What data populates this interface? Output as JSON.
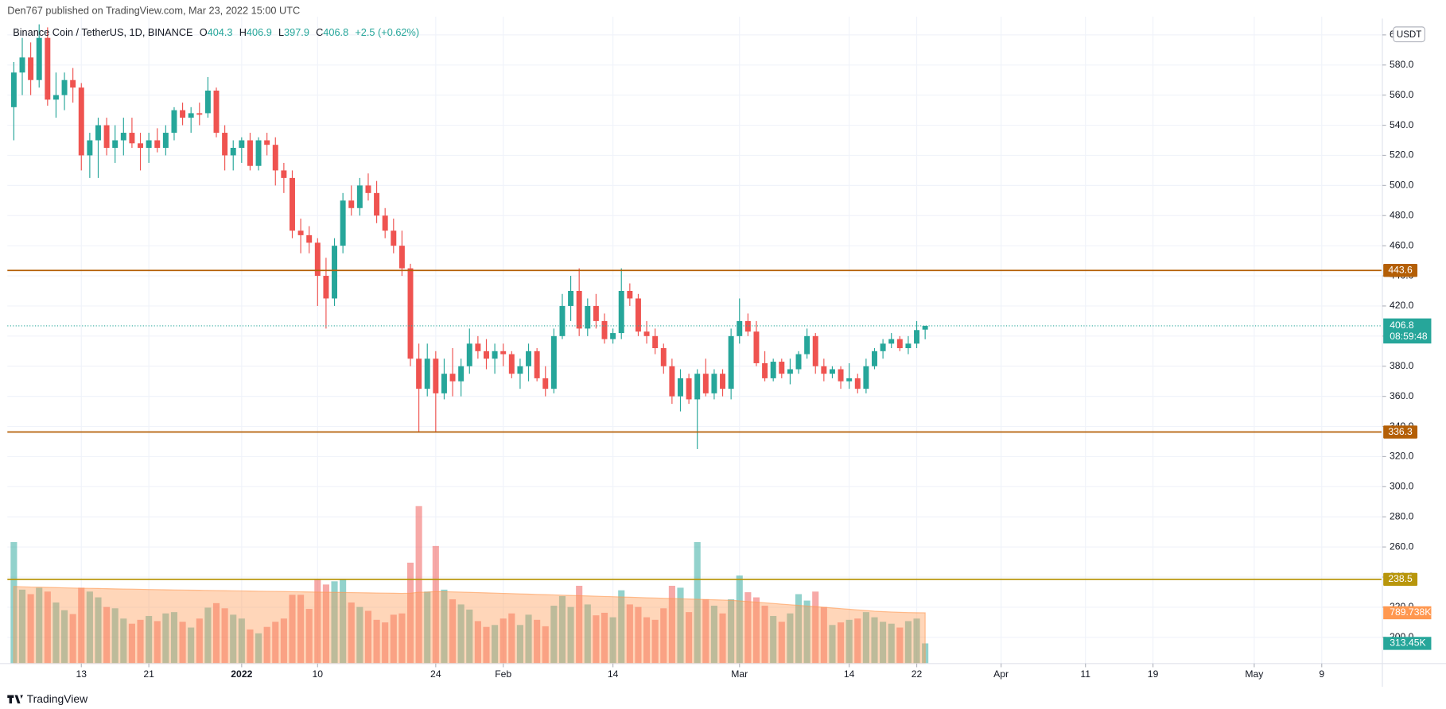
{
  "chart_data": {
    "type": "candlestick",
    "publisher": "Den767 published on TradingView.com, Mar 23, 2022 15:00 UTC",
    "title": "Binance Coin / TetherUS, 1D, BINANCE",
    "ohlc_labels": [
      "O",
      "H",
      "L",
      "C"
    ],
    "change": "+2.5 (+0.62%)",
    "currency": "USDT",
    "countdown": "08:59:48",
    "brand": "TradingView",
    "up_color": "#26a69a",
    "down_color": "#ef5350",
    "ma_color": "#ff9850",
    "x": [
      "2021-12-05",
      "2021-12-06",
      "2021-12-07",
      "2021-12-08",
      "2021-12-09",
      "2021-12-10",
      "2021-12-11",
      "2021-12-12",
      "2021-12-13",
      "2021-12-14",
      "2021-12-15",
      "2021-12-16",
      "2021-12-17",
      "2021-12-18",
      "2021-12-19",
      "2021-12-20",
      "2021-12-21",
      "2021-12-22",
      "2021-12-23",
      "2021-12-24",
      "2021-12-25",
      "2021-12-26",
      "2021-12-27",
      "2021-12-28",
      "2021-12-29",
      "2021-12-30",
      "2021-12-31",
      "2022-01-01",
      "2022-01-02",
      "2022-01-03",
      "2022-01-04",
      "2022-01-05",
      "2022-01-06",
      "2022-01-07",
      "2022-01-08",
      "2022-01-09",
      "2022-01-10",
      "2022-01-11",
      "2022-01-12",
      "2022-01-13",
      "2022-01-14",
      "2022-01-15",
      "2022-01-16",
      "2022-01-17",
      "2022-01-18",
      "2022-01-19",
      "2022-01-20",
      "2022-01-21",
      "2022-01-22",
      "2022-01-23",
      "2022-01-24",
      "2022-01-25",
      "2022-01-26",
      "2022-01-27",
      "2022-01-28",
      "2022-01-29",
      "2022-01-30",
      "2022-01-31",
      "2022-02-01",
      "2022-02-02",
      "2022-02-03",
      "2022-02-04",
      "2022-02-05",
      "2022-02-06",
      "2022-02-07",
      "2022-02-08",
      "2022-02-09",
      "2022-02-10",
      "2022-02-11",
      "2022-02-12",
      "2022-02-13",
      "2022-02-14",
      "2022-02-15",
      "2022-02-16",
      "2022-02-17",
      "2022-02-18",
      "2022-02-19",
      "2022-02-20",
      "2022-02-21",
      "2022-02-22",
      "2022-02-23",
      "2022-02-24",
      "2022-02-25",
      "2022-02-26",
      "2022-02-27",
      "2022-02-28",
      "2022-03-01",
      "2022-03-02",
      "2022-03-03",
      "2022-03-04",
      "2022-03-05",
      "2022-03-06",
      "2022-03-07",
      "2022-03-08",
      "2022-03-09",
      "2022-03-10",
      "2022-03-11",
      "2022-03-12",
      "2022-03-13",
      "2022-03-14",
      "2022-03-15",
      "2022-03-16",
      "2022-03-17",
      "2022-03-18",
      "2022-03-19",
      "2022-03-20",
      "2022-03-21",
      "2022-03-22",
      "2022-03-23"
    ],
    "open": [
      552,
      575,
      585,
      570,
      598,
      557,
      560,
      570,
      565,
      520,
      530,
      540,
      525,
      530,
      535,
      528,
      525,
      530,
      525,
      535,
      550,
      545,
      548,
      548,
      563,
      535,
      520,
      525,
      530,
      513,
      530,
      527,
      510,
      505,
      470,
      467,
      462,
      440,
      425,
      460,
      490,
      485,
      500,
      495,
      480,
      470,
      460,
      445,
      385,
      365,
      385,
      362,
      375,
      370,
      380,
      395,
      390,
      385,
      390,
      388,
      375,
      380,
      390,
      372,
      365,
      400,
      420,
      430,
      405,
      420,
      410,
      398,
      402,
      430,
      425,
      403,
      400,
      392,
      380,
      360,
      372,
      358,
      375,
      362,
      375,
      365,
      400,
      410,
      403,
      382,
      372,
      383,
      375,
      378,
      388,
      400,
      380,
      375,
      378,
      370,
      372,
      365,
      380,
      390,
      395,
      398,
      392,
      395,
      404.3
    ],
    "high": [
      582,
      598,
      595,
      607,
      605,
      575,
      575,
      578,
      568,
      535,
      545,
      545,
      540,
      545,
      545,
      535,
      535,
      538,
      540,
      552,
      555,
      552,
      555,
      572,
      565,
      540,
      530,
      532,
      535,
      532,
      535,
      532,
      515,
      510,
      478,
      473,
      465,
      452,
      465,
      495,
      500,
      505,
      508,
      503,
      485,
      478,
      470,
      448,
      395,
      395,
      390,
      385,
      392,
      385,
      405,
      400,
      398,
      395,
      395,
      390,
      385,
      395,
      392,
      380,
      405,
      428,
      440,
      445,
      425,
      428,
      415,
      405,
      445,
      435,
      428,
      410,
      405,
      395,
      385,
      378,
      375,
      378,
      385,
      378,
      378,
      405,
      425,
      415,
      410,
      390,
      385,
      385,
      385,
      390,
      405,
      402,
      385,
      380,
      380,
      382,
      375,
      385,
      392,
      398,
      402,
      400,
      400,
      410,
      406.9
    ],
    "low": [
      530,
      560,
      560,
      565,
      553,
      545,
      550,
      555,
      510,
      505,
      505,
      520,
      515,
      520,
      525,
      510,
      515,
      522,
      520,
      530,
      540,
      535,
      540,
      545,
      532,
      510,
      510,
      515,
      510,
      510,
      520,
      500,
      495,
      465,
      455,
      455,
      420,
      405,
      420,
      455,
      480,
      480,
      490,
      475,
      465,
      455,
      440,
      380,
      336,
      360,
      336,
      358,
      360,
      360,
      375,
      385,
      378,
      375,
      380,
      372,
      365,
      370,
      370,
      360,
      362,
      398,
      410,
      400,
      400,
      405,
      395,
      395,
      398,
      420,
      400,
      395,
      388,
      375,
      355,
      350,
      355,
      325,
      360,
      358,
      360,
      358,
      395,
      400,
      380,
      370,
      370,
      372,
      368,
      375,
      385,
      375,
      370,
      372,
      365,
      365,
      362,
      362,
      378,
      385,
      392,
      390,
      388,
      392,
      397.9
    ],
    "close": [
      575,
      585,
      570,
      598,
      557,
      560,
      570,
      565,
      520,
      530,
      540,
      525,
      530,
      535,
      528,
      525,
      530,
      525,
      535,
      550,
      545,
      548,
      547,
      563,
      535,
      520,
      525,
      530,
      513,
      530,
      527,
      510,
      505,
      470,
      467,
      462,
      440,
      425,
      460,
      490,
      485,
      500,
      495,
      480,
      470,
      460,
      445,
      385,
      365,
      385,
      362,
      375,
      370,
      380,
      395,
      390,
      385,
      390,
      388,
      375,
      380,
      390,
      372,
      365,
      400,
      420,
      430,
      405,
      420,
      410,
      398,
      402,
      430,
      425,
      403,
      400,
      392,
      380,
      360,
      372,
      358,
      375,
      362,
      375,
      365,
      400,
      410,
      403,
      382,
      372,
      383,
      375,
      378,
      388,
      400,
      380,
      375,
      378,
      370,
      372,
      365,
      380,
      390,
      395,
      398,
      392,
      395,
      404,
      406.8
    ],
    "volume": [
      1890,
      1150,
      1080,
      1180,
      1120,
      950,
      830,
      770,
      1180,
      1120,
      1030,
      880,
      860,
      700,
      620,
      680,
      740,
      660,
      780,
      800,
      650,
      560,
      700,
      870,
      940,
      860,
      760,
      700,
      530,
      470,
      570,
      650,
      700,
      1070,
      1070,
      850,
      1310,
      1230,
      1280,
      1310,
      950,
      880,
      820,
      680,
      640,
      760,
      780,
      1570,
      2450,
      1120,
      1830,
      1150,
      1000,
      920,
      840,
      660,
      570,
      600,
      700,
      780,
      600,
      760,
      680,
      580,
      900,
      1050,
      880,
      1210,
      920,
      750,
      790,
      720,
      1140,
      920,
      880,
      720,
      680,
      860,
      1210,
      1180,
      800,
      1890,
      1000,
      900,
      780,
      1000,
      1370,
      1110,
      1030,
      900,
      740,
      650,
      780,
      1080,
      980,
      1120,
      880,
      600,
      640,
      680,
      700,
      800,
      720,
      650,
      620,
      560,
      660,
      700,
      313.45
    ],
    "volume_ma": [
      1200,
      1195,
      1190,
      1188,
      1185,
      1182,
      1178,
      1175,
      1172,
      1170,
      1168,
      1165,
      1162,
      1160,
      1158,
      1155,
      1152,
      1150,
      1148,
      1146,
      1144,
      1142,
      1140,
      1138,
      1136,
      1134,
      1132,
      1130,
      1128,
      1126,
      1124,
      1122,
      1120,
      1118,
      1116,
      1114,
      1112,
      1110,
      1108,
      1106,
      1104,
      1102,
      1100,
      1098,
      1096,
      1094,
      1092,
      1095,
      1110,
      1112,
      1120,
      1118,
      1115,
      1112,
      1108,
      1104,
      1100,
      1096,
      1092,
      1088,
      1084,
      1080,
      1076,
      1072,
      1068,
      1064,
      1060,
      1056,
      1052,
      1048,
      1044,
      1040,
      1036,
      1032,
      1028,
      1024,
      1020,
      1016,
      1012,
      1008,
      1004,
      1000,
      996,
      992,
      988,
      984,
      975,
      965,
      955,
      945,
      935,
      925,
      915,
      905,
      895,
      885,
      875,
      865,
      855,
      845,
      835,
      825,
      815,
      808,
      802,
      797,
      793,
      791,
      789.738
    ],
    "volume_ylim": [
      0,
      2600
    ],
    "last_volume": {
      "value": 313.45,
      "label": "313.45K"
    },
    "last_volume_ma": {
      "value": 789.738,
      "label": "789.738K"
    },
    "ylim": [
      182.6,
      609.6
    ],
    "yticks": [
      {
        "value": 200,
        "label": "200.0"
      },
      {
        "value": 220,
        "label": "220.0"
      },
      {
        "value": 240,
        "label": "240.0"
      },
      {
        "value": 260,
        "label": "260.0"
      },
      {
        "value": 280,
        "label": "280.0"
      },
      {
        "value": 300,
        "label": "300.0"
      },
      {
        "value": 320,
        "label": "320.0"
      },
      {
        "value": 340,
        "label": "340.0"
      },
      {
        "value": 360,
        "label": "360.0"
      },
      {
        "value": 380,
        "label": "380.0"
      },
      {
        "value": 400,
        "label": "400.0"
      },
      {
        "value": 420,
        "label": "420.0"
      },
      {
        "value": 440,
        "label": "440.0"
      },
      {
        "value": 460,
        "label": "460.0"
      },
      {
        "value": 480,
        "label": "480.0"
      },
      {
        "value": 500,
        "label": "500.0"
      },
      {
        "value": 520,
        "label": "520.0"
      },
      {
        "value": 540,
        "label": "540.0"
      },
      {
        "value": 560,
        "label": "560.0"
      },
      {
        "value": 580,
        "label": "580.0"
      },
      {
        "value": 600,
        "label": "600.0"
      }
    ],
    "xticks": [
      {
        "value": "2021-12-13",
        "label": "13"
      },
      {
        "value": "2021-12-21",
        "label": "21"
      },
      {
        "value": "2022-01-01",
        "label": "2022"
      },
      {
        "value": "2022-01-10",
        "label": "10"
      },
      {
        "value": "2022-01-24",
        "label": "24"
      },
      {
        "value": "2022-02-01",
        "label": "Feb"
      },
      {
        "value": "2022-02-14",
        "label": "14"
      },
      {
        "value": "2022-03-01",
        "label": "Mar"
      },
      {
        "value": "2022-03-14",
        "label": "14"
      },
      {
        "value": "2022-03-22",
        "label": "22"
      },
      {
        "value": "2022-04-01",
        "label": "Apr"
      },
      {
        "value": "2022-04-11",
        "label": "11"
      },
      {
        "value": "2022-04-19",
        "label": "19"
      },
      {
        "value": "2022-05-01",
        "label": "May"
      },
      {
        "value": "2022-05-09",
        "label": "9"
      }
    ],
    "horizontal_lines": [
      {
        "value": 443.6,
        "color": "#b45f06"
      },
      {
        "value": 336.3,
        "color": "#b45f06"
      },
      {
        "value": 238.5,
        "color": "#b8960c"
      }
    ],
    "grid": true
  }
}
